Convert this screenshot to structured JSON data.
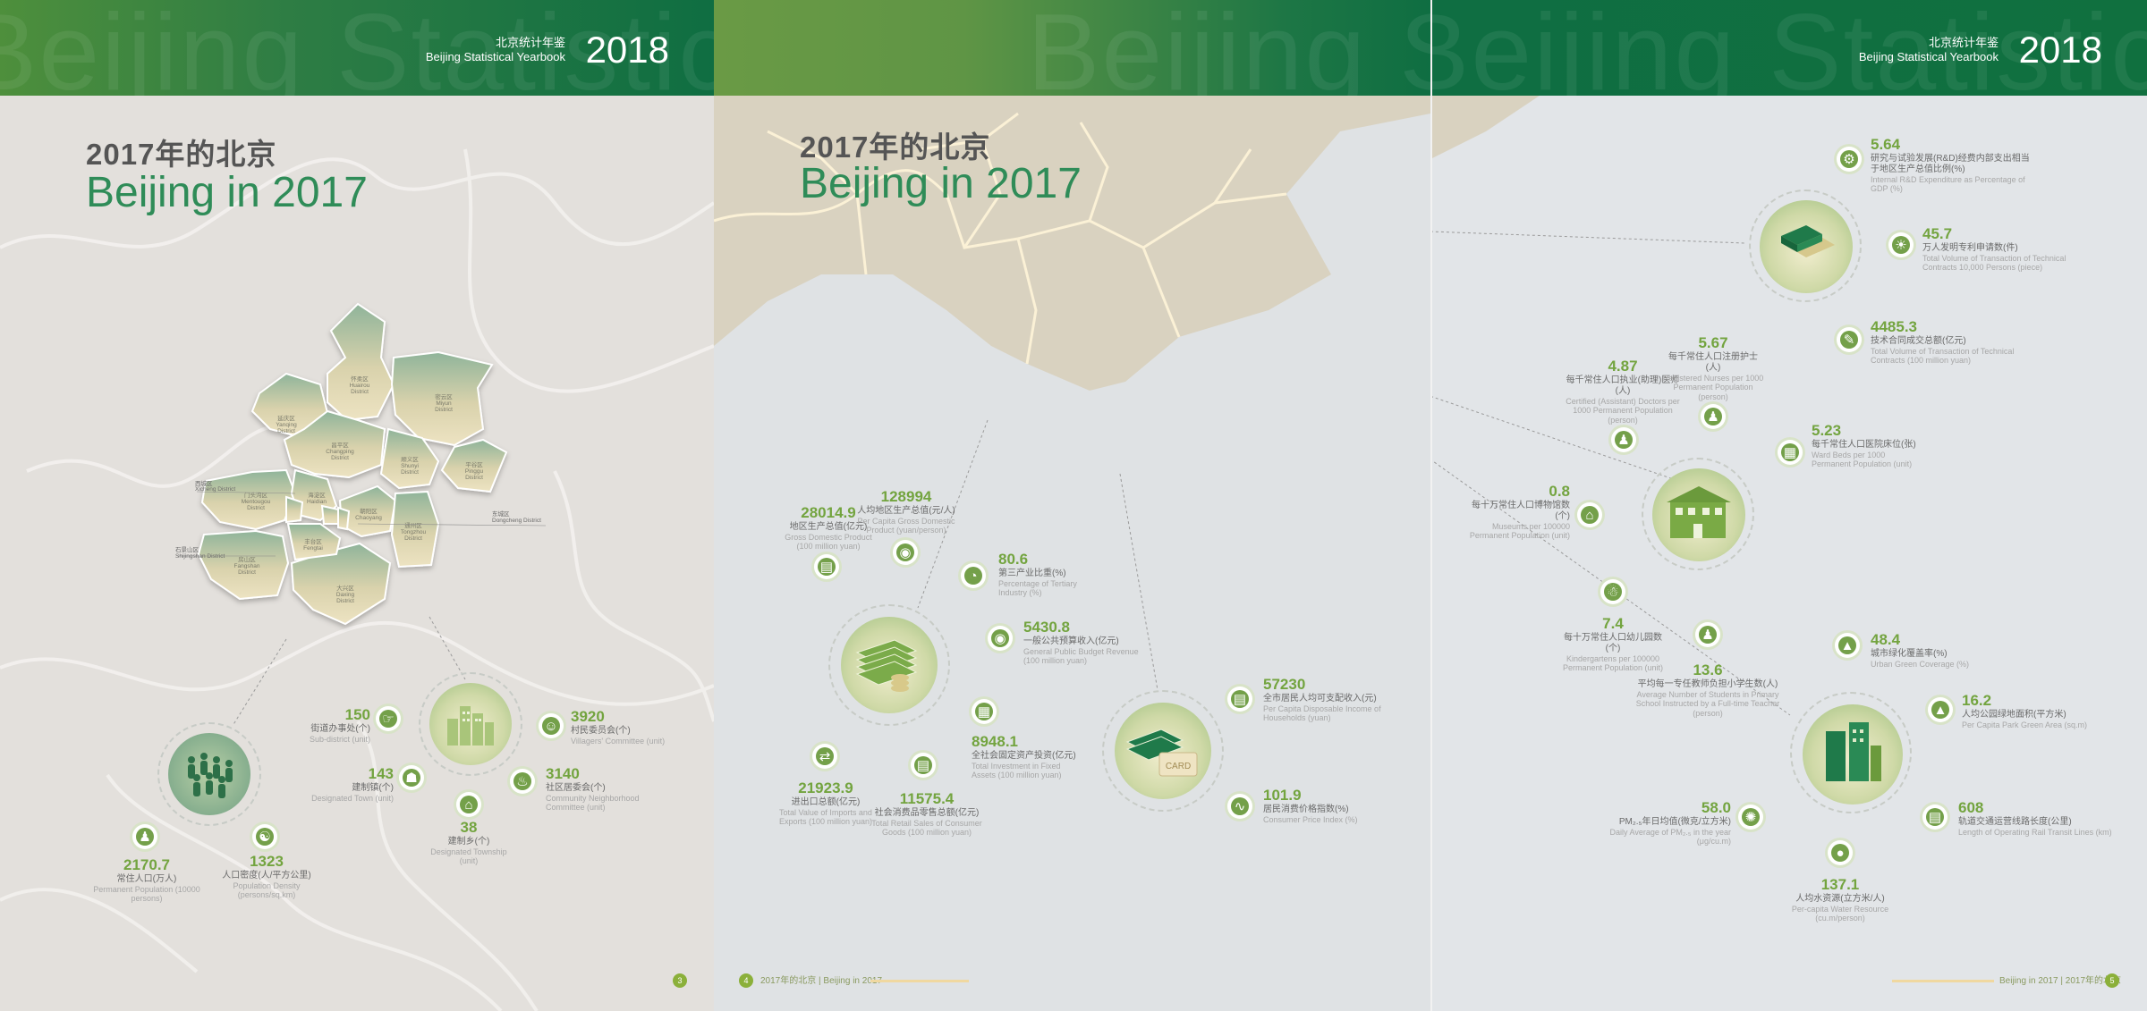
{
  "header": {
    "title_cn": "北京统计年鉴",
    "title_en": "Beijing Statistical Yearbook",
    "year": "2018",
    "watermark": "Beijing Statistical Yearbook"
  },
  "section": {
    "title_cn": "2017年的北京",
    "title_en": "Beijing in 2017"
  },
  "districts": [
    {
      "cn": "延庆区",
      "en": "Yanqing District"
    },
    {
      "cn": "怀柔区",
      "en": "Huairou District"
    },
    {
      "cn": "密云区",
      "en": "Miyun District"
    },
    {
      "cn": "昌平区",
      "en": "Changping District"
    },
    {
      "cn": "顺义区",
      "en": "Shunyi District"
    },
    {
      "cn": "平谷区",
      "en": "Pinggu District"
    },
    {
      "cn": "门头沟区",
      "en": "Mentougou District"
    },
    {
      "cn": "海淀区",
      "en": "Haidian District"
    },
    {
      "cn": "朝阳区",
      "en": "Chaoyang District"
    },
    {
      "cn": "通州区",
      "en": "Tongzhou District"
    },
    {
      "cn": "房山区",
      "en": "Fangshan District"
    },
    {
      "cn": "大兴区",
      "en": "Daxing District"
    },
    {
      "cn": "丰台区",
      "en": "Fengtai District"
    },
    {
      "cn": "西城区",
      "en": "Xicheng District"
    },
    {
      "cn": "东城区",
      "en": "Dongcheng District"
    },
    {
      "cn": "石景山区",
      "en": "Shijingshan District"
    }
  ],
  "page1_stats": [
    {
      "v": "150",
      "cn": "街道办事处(个)",
      "en": "Sub-district (unit)"
    },
    {
      "v": "143",
      "cn": "建制镇(个)",
      "en": "Designated Town (unit)"
    },
    {
      "v": "38",
      "cn": "建制乡(个)",
      "en": "Designated Township (unit)"
    },
    {
      "v": "3920",
      "cn": "村民委员会(个)",
      "en": "Villagers' Committee (unit)"
    },
    {
      "v": "3140",
      "cn": "社区居委会(个)",
      "en": "Community Neighborhood Committee (unit)"
    },
    {
      "v": "2170.7",
      "cn": "常住人口(万人)",
      "en": "Permanent Population (10000 persons)"
    },
    {
      "v": "1323",
      "cn": "人口密度(人/平方公里)",
      "en": "Population Density (persons/sq.km)"
    }
  ],
  "page2_stats": [
    {
      "v": "28014.9",
      "cn": "地区生产总值(亿元)",
      "en": "Gross Domestic Product (100 million yuan)"
    },
    {
      "v": "128994",
      "cn": "人均地区生产总值(元/人)",
      "en": "Per Capita Gross Domestic Product (yuan/person)"
    },
    {
      "v": "80.6",
      "cn": "第三产业比重(%)",
      "en": "Percentage of Tertiary Industry (%)"
    },
    {
      "v": "5430.8",
      "cn": "一般公共预算收入(亿元)",
      "en": "General Public Budget Revenue (100 million yuan)"
    },
    {
      "v": "8948.1",
      "cn": "全社会固定资产投资(亿元)",
      "en": "Total Investment in Fixed Assets (100 million yuan)"
    },
    {
      "v": "21923.9",
      "cn": "进出口总额(亿元)",
      "en": "Total Value of Imports and Exports (100 million yuan)"
    },
    {
      "v": "11575.4",
      "cn": "社会消费品零售总额(亿元)",
      "en": "Total Retail Sales of Consumer Goods (100 million yuan)"
    },
    {
      "v": "57230",
      "cn": "全市居民人均可支配收入(元)",
      "en": "Per Capita Disposable Income of Households (yuan)"
    },
    {
      "v": "101.9",
      "cn": "居民消费价格指数(%)",
      "en": "Consumer Price Index (%)"
    }
  ],
  "page3_stats": [
    {
      "v": "5.64",
      "cn": "研究与试验发展(R&D)经费内部支出相当于地区生产总值比例(%)",
      "en": "Internal R&D Expenditure as Percentage of GDP (%)"
    },
    {
      "v": "45.7",
      "cn": "万人发明专利申请数(件)",
      "en": "Total Volume of Transaction of Technical Contracts 10,000 Persons (piece)"
    },
    {
      "v": "4485.3",
      "cn": "技术合同成交总额(亿元)",
      "en": "Total Volume of Transaction of Technical Contracts (100 million yuan)"
    },
    {
      "v": "4.87",
      "cn": "每千常住人口执业(助理)医师(人)",
      "en": "Certified (Assistant) Doctors per 1000 Permanent Population (person)"
    },
    {
      "v": "5.67",
      "cn": "每千常住人口注册护士(人)",
      "en": "Registered Nurses per 1000 Permanent Population (person)"
    },
    {
      "v": "5.23",
      "cn": "每千常住人口医院床位(张)",
      "en": "Ward Beds per 1000 Permanent Population (unit)"
    },
    {
      "v": "0.8",
      "cn": "每十万常住人口博物馆数(个)",
      "en": "Museums per 100000 Permanent Population (unit)"
    },
    {
      "v": "7.4",
      "cn": "每十万常住人口幼儿园数(个)",
      "en": "Kindergartens per 100000 Permanent Population (unit)"
    },
    {
      "v": "13.6",
      "cn": "平均每一专任教师负担小学生数(人)",
      "en": "Average Number of Students in Primary School Instructed by a Full-time Teacher (person)"
    },
    {
      "v": "48.4",
      "cn": "城市绿化覆盖率(%)",
      "en": "Urban Green Coverage (%)"
    },
    {
      "v": "16.2",
      "cn": "人均公园绿地面积(平方米)",
      "en": "Per Capita Park Green Area (sq.m)"
    },
    {
      "v": "58.0",
      "cn": "PM₂.₅年日均值(微克/立方米)",
      "en": "Daily Average of PM₂.₅ in the year (μg/cu.m)"
    },
    {
      "v": "608",
      "cn": "轨道交通运营线路长度(公里)",
      "en": "Length of Operating Rail Transit Lines (km)"
    },
    {
      "v": "137.1",
      "cn": "人均水资源(立方米/人)",
      "en": "Per-capita Water Resource (cu.m/person)"
    }
  ],
  "footers": {
    "p1_num": "3",
    "p2_num": "4",
    "p2_text": "2017年的北京 | Beijing in 2017",
    "p3_text": "Beijing in 2017 | 2017年的北京",
    "p3_num": "5"
  },
  "colors": {
    "band_green": "#0f6e42",
    "accent_green": "#2f8c58",
    "value_green": "#73a43f"
  }
}
